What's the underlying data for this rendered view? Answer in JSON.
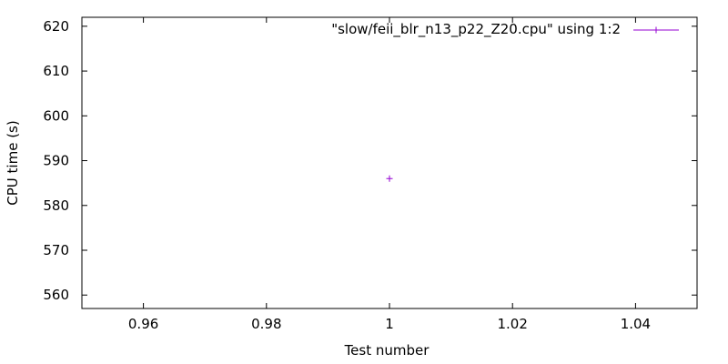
{
  "chart_data": {
    "type": "scatter",
    "xlabel": "Test number",
    "ylabel": "CPU time (s)",
    "xlim": [
      0.95,
      1.05
    ],
    "ylim": [
      557,
      622
    ],
    "xticks": [
      0.96,
      0.98,
      1.0,
      1.02,
      1.04
    ],
    "xtick_labels": [
      "0.96",
      "0.98",
      "1",
      "1.02",
      "1.04"
    ],
    "yticks": [
      560,
      570,
      580,
      590,
      600,
      610,
      620
    ],
    "ytick_labels": [
      "560",
      "570",
      "580",
      "590",
      "600",
      "610",
      "620"
    ],
    "grid": false,
    "legend_position": "top-right",
    "series": [
      {
        "name": "\"slow/feii_blr_n13_p22_Z20.cpu\" using 1:2",
        "color": "#9400d3",
        "marker": "plus",
        "points": [
          {
            "x": 1,
            "y": 586
          }
        ]
      }
    ]
  }
}
